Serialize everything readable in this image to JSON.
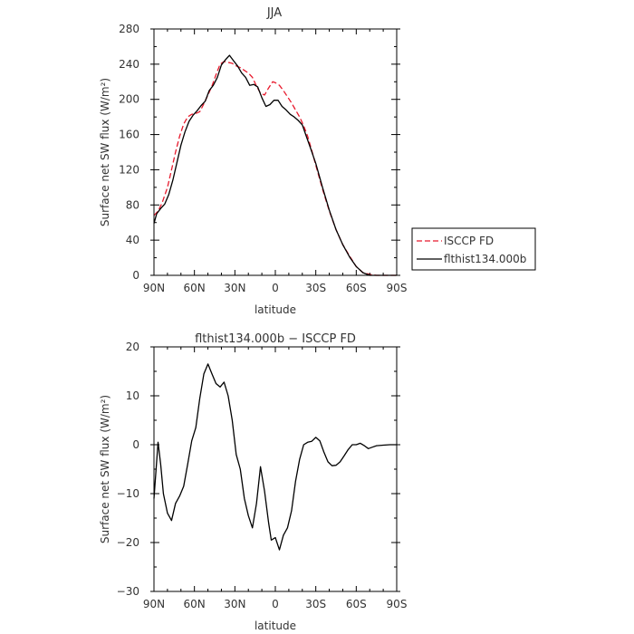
{
  "chart_data": [
    {
      "type": "line",
      "title": "JJA",
      "xlabel": "latitude",
      "ylabel": "Surface net SW flux (W/m²)",
      "xlim": [
        90,
        -90
      ],
      "ylim": [
        0,
        280
      ],
      "x_ticks": [
        90,
        60,
        30,
        0,
        -30,
        -60,
        -90
      ],
      "x_tick_labels": [
        "90N",
        "60N",
        "30N",
        "0",
        "30S",
        "60S",
        "90S"
      ],
      "y_ticks": [
        0,
        40,
        80,
        120,
        160,
        200,
        240,
        280
      ],
      "y_tick_labels": [
        "0",
        "40",
        "80",
        "120",
        "160",
        "200",
        "240",
        "280"
      ],
      "legend": {
        "placement": "right",
        "entries": [
          {
            "label": "ISCCP FD",
            "color": "#e8192c",
            "dash": "dashed"
          },
          {
            "label": "flthist134.000b",
            "color": "#000000",
            "dash": "solid"
          }
        ]
      },
      "series": [
        {
          "name": "ISCCP FD",
          "color": "#e8192c",
          "style": "dashed",
          "x": [
            90,
            87,
            84,
            80,
            77,
            74,
            71,
            68,
            65,
            62,
            59,
            56,
            53,
            50,
            47,
            44,
            41,
            38,
            35,
            32,
            29,
            26,
            23,
            20,
            17,
            14,
            11,
            8,
            5,
            2,
            0,
            -3,
            -6,
            -9,
            -12,
            -15,
            -18,
            -21,
            -24,
            -27,
            -30,
            -35,
            -40,
            -45,
            -50,
            -55,
            -60,
            -65,
            -70,
            -75,
            -80,
            -85,
            -90
          ],
          "values": [
            68,
            73,
            82,
            100,
            120,
            140,
            158,
            172,
            180,
            183,
            184,
            186,
            195,
            205,
            215,
            228,
            240,
            243,
            242,
            241,
            238,
            236,
            233,
            230,
            225,
            215,
            207,
            205,
            213,
            220,
            219,
            216,
            210,
            203,
            196,
            188,
            180,
            170,
            158,
            142,
            125,
            98,
            73,
            52,
            35,
            22,
            10,
            3,
            1,
            0,
            0,
            0,
            0
          ]
        },
        {
          "name": "flthist134.000b",
          "color": "#000000",
          "style": "solid",
          "x": [
            90,
            88,
            85,
            82,
            79,
            76,
            73,
            70,
            67,
            64,
            61,
            58,
            55,
            52,
            49,
            46,
            43,
            40,
            37,
            34,
            31,
            28,
            25,
            22,
            19,
            16,
            13,
            10,
            7,
            4,
            1,
            -2,
            -5,
            -8,
            -11,
            -14,
            -17,
            -20,
            -23,
            -26,
            -30,
            -35,
            -40,
            -45,
            -50,
            -55,
            -60,
            -65,
            -70,
            -75,
            -80,
            -85,
            -90
          ],
          "values": [
            59,
            70,
            76,
            81,
            92,
            108,
            128,
            148,
            163,
            175,
            182,
            187,
            193,
            198,
            210,
            216,
            225,
            239,
            245,
            250,
            244,
            238,
            230,
            225,
            216,
            217,
            214,
            202,
            192,
            194,
            199,
            199,
            192,
            188,
            183,
            180,
            176,
            171,
            158,
            145,
            127,
            100,
            74,
            52,
            35,
            21,
            10,
            3,
            0,
            0,
            0,
            0,
            0
          ]
        }
      ]
    },
    {
      "type": "line",
      "title": "flthist134.000b − ISCCP FD",
      "xlabel": "latitude",
      "ylabel": "Surface net SW flux (W/m²)",
      "xlim": [
        90,
        -90
      ],
      "ylim": [
        -30,
        20
      ],
      "x_ticks": [
        90,
        60,
        30,
        0,
        -30,
        -60,
        -90
      ],
      "x_tick_labels": [
        "90N",
        "60N",
        "30N",
        "0",
        "30S",
        "60S",
        "90S"
      ],
      "y_ticks": [
        -30,
        -20,
        -10,
        0,
        10,
        20
      ],
      "y_tick_labels": [
        "−30",
        "−20",
        "−10",
        "0",
        "10",
        "20"
      ],
      "series": [
        {
          "color": "#000000",
          "style": "solid",
          "x": [
            90,
            87,
            85,
            83,
            80,
            77,
            74,
            71,
            68,
            65,
            62,
            59,
            56,
            53,
            50,
            47,
            44,
            41,
            38,
            35,
            32,
            29,
            26,
            23,
            20,
            17,
            14,
            11,
            8,
            5,
            3,
            0,
            -3,
            -6,
            -9,
            -12,
            -15,
            -18,
            -21,
            -24,
            -27,
            -30,
            -33,
            -36,
            -39,
            -42,
            -45,
            -48,
            -51,
            -54,
            -57,
            -60,
            -63,
            -66,
            -69,
            -72,
            -75,
            -80,
            -85,
            -90
          ],
          "values": [
            -11,
            0.5,
            -4,
            -10,
            -14,
            -15.5,
            -12,
            -10.5,
            -8.5,
            -4,
            0.8,
            3.5,
            9.5,
            14.5,
            16.5,
            14.5,
            12.5,
            11.8,
            12.8,
            10,
            5,
            -2,
            -5,
            -11,
            -14.5,
            -17,
            -12,
            -4.5,
            -9.5,
            -16,
            -19.5,
            -19,
            -21.5,
            -18.5,
            -17,
            -13.5,
            -7.5,
            -3,
            0,
            0.5,
            0.7,
            1.5,
            0.8,
            -1.5,
            -3.5,
            -4.3,
            -4.2,
            -3.5,
            -2.3,
            -1,
            0,
            0,
            0.3,
            -0.2,
            -0.8,
            -0.5,
            -0.2,
            -0.1,
            0,
            0
          ]
        }
      ]
    }
  ]
}
